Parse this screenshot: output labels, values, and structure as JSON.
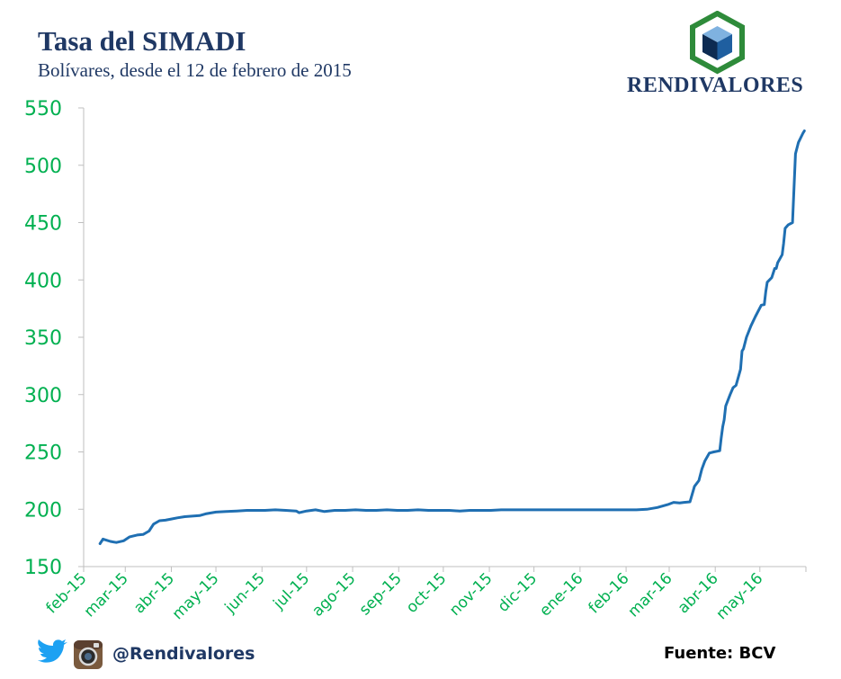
{
  "header": {
    "title": "Tasa del SIMADI",
    "subtitle": "Bolívares, desde el 12 de febrero de 2015"
  },
  "logo": {
    "text": "RENDIVALORES",
    "icon": "cube-hexagon-icon"
  },
  "footer": {
    "handle": "@Rendivalores",
    "source": "Fuente: BCV",
    "icons": [
      "twitter-icon",
      "instagram-icon"
    ]
  },
  "colors": {
    "line": "#1f6fb2",
    "axis_text": "#00b050",
    "title": "#1f3864",
    "logo_green": "#2e8b3a",
    "logo_blue": "#1f5fa0"
  },
  "chart_data": {
    "type": "line",
    "title": "Tasa del SIMADI",
    "subtitle": "Bolívares, desde el 12 de febrero de 2015",
    "xlabel": "",
    "ylabel": "",
    "ylim": [
      150,
      550
    ],
    "yticks": [
      150,
      200,
      250,
      300,
      350,
      400,
      450,
      500,
      550
    ],
    "xlim": [
      "2015-02-01",
      "2016-06-01"
    ],
    "xticks": [
      "feb-15",
      "mar-15",
      "abr-15",
      "may-15",
      "jun-15",
      "jul-15",
      "ago-15",
      "sep-15",
      "oct-15",
      "nov-15",
      "dic-15",
      "ene-16",
      "feb-16",
      "mar-16",
      "abr-16",
      "may-16"
    ],
    "grid": false,
    "legend": "none",
    "series": [
      {
        "points": [
          [
            "2015-02-12",
            170.0
          ],
          [
            "2015-02-14",
            174.0
          ],
          [
            "2015-02-19",
            172.0
          ],
          [
            "2015-02-23",
            171.0
          ],
          [
            "2015-02-28",
            172.5
          ],
          [
            "2015-03-04",
            176.0
          ],
          [
            "2015-03-09",
            177.5
          ],
          [
            "2015-03-13",
            178.0
          ],
          [
            "2015-03-17",
            181.0
          ],
          [
            "2015-03-20",
            187.0
          ],
          [
            "2015-03-24",
            190.0
          ],
          [
            "2015-03-28",
            190.5
          ],
          [
            "2015-04-01",
            191.5
          ],
          [
            "2015-04-05",
            192.5
          ],
          [
            "2015-04-10",
            193.5
          ],
          [
            "2015-04-15",
            194.0
          ],
          [
            "2015-04-20",
            194.5
          ],
          [
            "2015-04-24",
            196.0
          ],
          [
            "2015-05-01",
            197.5
          ],
          [
            "2015-05-08",
            198.0
          ],
          [
            "2015-05-15",
            198.5
          ],
          [
            "2015-05-22",
            199.0
          ],
          [
            "2015-05-29",
            199.0
          ],
          [
            "2015-06-03",
            199.0
          ],
          [
            "2015-06-10",
            199.5
          ],
          [
            "2015-06-17",
            199.0
          ],
          [
            "2015-06-24",
            198.5
          ],
          [
            "2015-06-26",
            197.0
          ],
          [
            "2015-07-01",
            198.5
          ],
          [
            "2015-07-07",
            199.5
          ],
          [
            "2015-07-13",
            198.0
          ],
          [
            "2015-07-20",
            199.0
          ],
          [
            "2015-07-27",
            199.0
          ],
          [
            "2015-08-03",
            199.5
          ],
          [
            "2015-08-10",
            199.0
          ],
          [
            "2015-08-17",
            199.0
          ],
          [
            "2015-08-24",
            199.5
          ],
          [
            "2015-08-31",
            199.0
          ],
          [
            "2015-09-07",
            199.0
          ],
          [
            "2015-09-14",
            199.5
          ],
          [
            "2015-09-21",
            199.0
          ],
          [
            "2015-09-28",
            199.0
          ],
          [
            "2015-10-05",
            199.0
          ],
          [
            "2015-10-12",
            198.5
          ],
          [
            "2015-10-19",
            199.0
          ],
          [
            "2015-10-26",
            199.0
          ],
          [
            "2015-11-02",
            199.0
          ],
          [
            "2015-11-09",
            199.5
          ],
          [
            "2015-11-16",
            199.5
          ],
          [
            "2015-11-23",
            199.5
          ],
          [
            "2015-11-30",
            199.5
          ],
          [
            "2015-12-07",
            199.5
          ],
          [
            "2015-12-14",
            199.5
          ],
          [
            "2015-12-21",
            199.5
          ],
          [
            "2015-12-28",
            199.5
          ],
          [
            "2016-01-04",
            199.5
          ],
          [
            "2016-01-11",
            199.5
          ],
          [
            "2016-01-18",
            199.5
          ],
          [
            "2016-01-25",
            199.5
          ],
          [
            "2016-02-01",
            199.5
          ],
          [
            "2016-02-08",
            199.5
          ],
          [
            "2016-02-15",
            200.0
          ],
          [
            "2016-02-22",
            201.5
          ],
          [
            "2016-02-29",
            204.0
          ],
          [
            "2016-03-04",
            206.0
          ],
          [
            "2016-03-08",
            205.5
          ],
          [
            "2016-03-11",
            206.0
          ],
          [
            "2016-03-15",
            206.5
          ],
          [
            "2016-03-18",
            220.0
          ],
          [
            "2016-03-21",
            225.0
          ],
          [
            "2016-03-23",
            235.0
          ],
          [
            "2016-03-25",
            242.0
          ],
          [
            "2016-03-28",
            249.0
          ],
          [
            "2016-03-31",
            250.0
          ],
          [
            "2016-04-04",
            251.0
          ],
          [
            "2016-04-05",
            262.0
          ],
          [
            "2016-04-06",
            272.0
          ],
          [
            "2016-04-07",
            278.0
          ],
          [
            "2016-04-08",
            290.0
          ],
          [
            "2016-04-11",
            300.0
          ],
          [
            "2016-04-13",
            306.0
          ],
          [
            "2016-04-15",
            308.0
          ],
          [
            "2016-04-18",
            322.0
          ],
          [
            "2016-04-19",
            338.0
          ],
          [
            "2016-04-20",
            340.0
          ],
          [
            "2016-04-22",
            350.0
          ],
          [
            "2016-04-25",
            360.0
          ],
          [
            "2016-04-28",
            368.0
          ],
          [
            "2016-05-02",
            378.0
          ],
          [
            "2016-05-04",
            378.5
          ],
          [
            "2016-05-05",
            390.0
          ],
          [
            "2016-05-06",
            398.0
          ],
          [
            "2016-05-09",
            402.0
          ],
          [
            "2016-05-11",
            410.0
          ],
          [
            "2016-05-12",
            410.0
          ],
          [
            "2016-05-13",
            415.0
          ],
          [
            "2016-05-16",
            422.0
          ],
          [
            "2016-05-17",
            432.0
          ],
          [
            "2016-05-18",
            445.0
          ],
          [
            "2016-05-20",
            448.0
          ],
          [
            "2016-05-23",
            450.0
          ],
          [
            "2016-05-25",
            510.0
          ],
          [
            "2016-05-27",
            520.0
          ],
          [
            "2016-05-30",
            528.0
          ],
          [
            "2016-05-31",
            530.0
          ]
        ]
      }
    ]
  }
}
